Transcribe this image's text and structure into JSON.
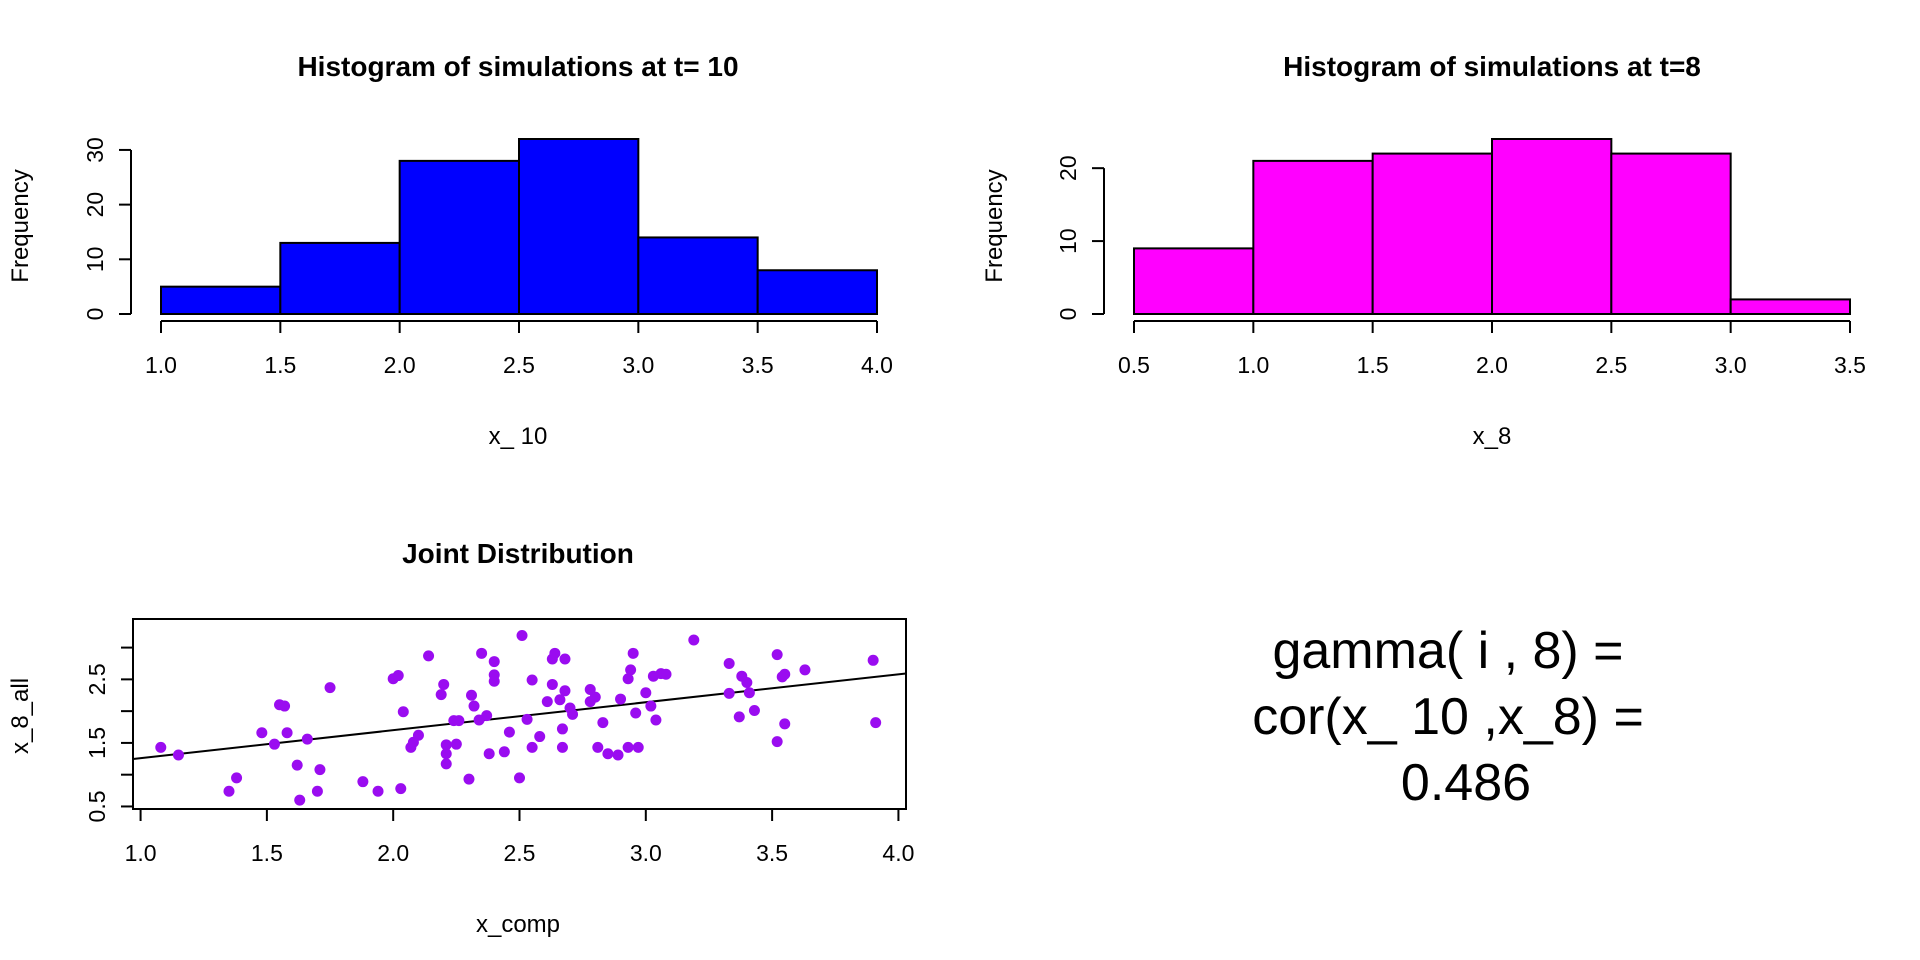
{
  "chart_data": [
    {
      "type": "bar",
      "title": "Histogram of simulations at t= 10",
      "xlabel": "x_ 10",
      "ylabel": "Frequency",
      "bin_edges": [
        1.0,
        1.5,
        2.0,
        2.5,
        3.0,
        3.5,
        4.0
      ],
      "values": [
        5,
        13,
        28,
        32,
        14,
        8
      ],
      "color": "#0000ff",
      "xticks": [
        "1.0",
        "1.5",
        "2.0",
        "2.5",
        "3.0",
        "3.5",
        "4.0"
      ],
      "yticks": [
        0,
        10,
        20,
        30
      ],
      "xlim": [
        1.0,
        4.0
      ],
      "ylim": [
        0,
        32
      ]
    },
    {
      "type": "bar",
      "title": "Histogram of simulations at t=8",
      "xlabel": "x_8",
      "ylabel": "Frequency",
      "bin_edges": [
        0.5,
        1.0,
        1.5,
        2.0,
        2.5,
        3.0,
        3.5
      ],
      "values": [
        9,
        21,
        22,
        24,
        22,
        2
      ],
      "color": "#ff00ff",
      "xticks": [
        "0.5",
        "1.0",
        "1.5",
        "2.0",
        "2.5",
        "3.0",
        "3.5"
      ],
      "yticks": [
        0,
        10,
        20
      ],
      "xlim": [
        0.5,
        3.5
      ],
      "ylim": [
        0,
        24
      ]
    },
    {
      "type": "scatter",
      "title": "Joint Distribution",
      "xlabel": "x_comp",
      "ylabel": "x_8_all",
      "color": "#9a0cf0",
      "xticks": [
        "1.0",
        "1.5",
        "2.0",
        "2.5",
        "3.0",
        "3.5",
        "4.0"
      ],
      "yticks": [
        "0.5",
        "1.5",
        "2.5"
      ],
      "xlim": [
        0.97,
        4.03
      ],
      "ylim": [
        0.46,
        3.45
      ],
      "regression_line": {
        "intercept": 0.82,
        "slope": 0.44
      },
      "points": [
        [
          1.08,
          1.43
        ],
        [
          1.15,
          1.31
        ],
        [
          1.35,
          0.74
        ],
        [
          1.38,
          0.95
        ],
        [
          1.48,
          1.66
        ],
        [
          1.53,
          1.48
        ],
        [
          1.55,
          2.1
        ],
        [
          1.57,
          2.08
        ],
        [
          1.58,
          1.66
        ],
        [
          1.62,
          1.15
        ],
        [
          1.63,
          0.6
        ],
        [
          1.66,
          1.56
        ],
        [
          1.7,
          0.74
        ],
        [
          1.71,
          1.08
        ],
        [
          1.75,
          2.37
        ],
        [
          1.88,
          0.89
        ],
        [
          1.94,
          0.74
        ],
        [
          2.0,
          2.51
        ],
        [
          2.02,
          2.56
        ],
        [
          2.03,
          0.78
        ],
        [
          2.04,
          1.99
        ],
        [
          2.07,
          1.43
        ],
        [
          2.08,
          1.51
        ],
        [
          2.1,
          1.62
        ],
        [
          2.14,
          2.87
        ],
        [
          2.19,
          2.26
        ],
        [
          2.2,
          2.42
        ],
        [
          2.21,
          1.47
        ],
        [
          2.21,
          1.33
        ],
        [
          2.21,
          1.17
        ],
        [
          2.24,
          1.85
        ],
        [
          2.25,
          1.48
        ],
        [
          2.26,
          1.85
        ],
        [
          2.3,
          0.93
        ],
        [
          2.31,
          2.25
        ],
        [
          2.32,
          2.08
        ],
        [
          2.34,
          1.86
        ],
        [
          2.35,
          2.91
        ],
        [
          2.37,
          1.93
        ],
        [
          2.38,
          1.33
        ],
        [
          2.4,
          2.57
        ],
        [
          2.4,
          2.47
        ],
        [
          2.4,
          2.78
        ],
        [
          2.44,
          1.36
        ],
        [
          2.46,
          1.67
        ],
        [
          2.5,
          0.95
        ],
        [
          2.51,
          3.19
        ],
        [
          2.53,
          1.87
        ],
        [
          2.55,
          2.49
        ],
        [
          2.55,
          1.43
        ],
        [
          2.58,
          1.6
        ],
        [
          2.61,
          2.15
        ],
        [
          2.63,
          2.42
        ],
        [
          2.63,
          2.82
        ],
        [
          2.64,
          2.91
        ],
        [
          2.66,
          2.18
        ],
        [
          2.67,
          1.43
        ],
        [
          2.67,
          1.72
        ],
        [
          2.68,
          2.32
        ],
        [
          2.68,
          2.82
        ],
        [
          2.7,
          2.05
        ],
        [
          2.71,
          1.95
        ],
        [
          2.78,
          2.34
        ],
        [
          2.78,
          2.15
        ],
        [
          2.8,
          2.22
        ],
        [
          2.81,
          1.43
        ],
        [
          2.83,
          1.82
        ],
        [
          2.85,
          1.33
        ],
        [
          2.89,
          1.31
        ],
        [
          2.9,
          2.19
        ],
        [
          2.93,
          1.43
        ],
        [
          2.93,
          2.51
        ],
        [
          2.94,
          2.65
        ],
        [
          2.95,
          2.91
        ],
        [
          2.96,
          1.97
        ],
        [
          2.97,
          1.43
        ],
        [
          3.0,
          2.29
        ],
        [
          3.02,
          2.08
        ],
        [
          3.03,
          2.55
        ],
        [
          3.04,
          1.86
        ],
        [
          3.06,
          2.59
        ],
        [
          3.08,
          2.58
        ],
        [
          3.19,
          3.12
        ],
        [
          3.33,
          2.28
        ],
        [
          3.33,
          2.75
        ],
        [
          3.37,
          1.91
        ],
        [
          3.38,
          2.55
        ],
        [
          3.4,
          2.45
        ],
        [
          3.41,
          2.29
        ],
        [
          3.43,
          2.01
        ],
        [
          3.52,
          1.52
        ],
        [
          3.52,
          2.89
        ],
        [
          3.54,
          2.54
        ],
        [
          3.55,
          1.8
        ],
        [
          3.55,
          2.58
        ],
        [
          3.63,
          2.65
        ],
        [
          3.9,
          2.8
        ],
        [
          3.91,
          1.82
        ]
      ]
    }
  ],
  "annotation": {
    "line1": "gamma( i , 8) =",
    "line2": "cor(x_ 10 ,x_8) =",
    "line3": "0.486"
  }
}
